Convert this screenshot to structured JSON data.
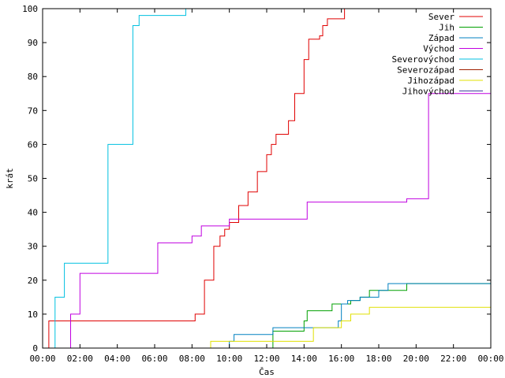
{
  "chart_data": {
    "type": "line",
    "title": "",
    "xlabel": "Čas",
    "ylabel": "krát",
    "xlim": [
      "00:00",
      "24:00"
    ],
    "ylim": [
      0,
      100
    ],
    "x_tick_labels": [
      "00:00",
      "02:00",
      "04:00",
      "06:00",
      "08:00",
      "10:00",
      "12:00",
      "14:00",
      "16:00",
      "18:00",
      "20:00",
      "22:00",
      "00:00"
    ],
    "y_ticks": [
      0,
      10,
      20,
      30,
      40,
      50,
      60,
      70,
      80,
      90,
      100
    ],
    "grid": false,
    "legend_position": "top-right",
    "series": [
      {
        "name": "Sever",
        "color": "#e00000",
        "step": true,
        "x": [
          "00:00",
          "00:20",
          "07:40",
          "08:10",
          "08:40",
          "09:10",
          "09:30",
          "09:45",
          "10:00",
          "10:30",
          "11:00",
          "11:30",
          "12:00",
          "12:15",
          "12:30",
          "12:45",
          "13:00",
          "13:10",
          "13:30",
          "14:00",
          "14:15",
          "14:30",
          "14:50",
          "15:00",
          "15:15",
          "15:30",
          "15:45",
          "16:00",
          "16:10",
          "24:00"
        ],
        "y": [
          0,
          8,
          8,
          10,
          20,
          30,
          33,
          35,
          37,
          42,
          46,
          52,
          57,
          60,
          63,
          63,
          63,
          67,
          75,
          85,
          91,
          91,
          92,
          95,
          97,
          97,
          97,
          97,
          100,
          100
        ]
      },
      {
        "name": "Jih",
        "color": "#00a000",
        "step": true,
        "x": [
          "00:00",
          "12:10",
          "12:20",
          "13:00",
          "14:00",
          "14:10",
          "15:30",
          "16:00",
          "16:30",
          "17:00",
          "17:30",
          "18:00",
          "18:30",
          "19:30",
          "24:00"
        ],
        "y": [
          0,
          0,
          5,
          5,
          8,
          11,
          13,
          13,
          14,
          15,
          17,
          17,
          17,
          19,
          19
        ]
      },
      {
        "name": "Západ",
        "color": "#0080c0",
        "step": true,
        "x": [
          "00:00",
          "08:40",
          "10:00",
          "10:15",
          "12:00",
          "12:20",
          "14:00",
          "15:00",
          "15:50",
          "16:00",
          "16:20",
          "17:00",
          "17:30",
          "18:00",
          "18:30",
          "24:00"
        ],
        "y": [
          0,
          0,
          2,
          4,
          4,
          6,
          6,
          6,
          8,
          13,
          14,
          15,
          15,
          17,
          19,
          19
        ]
      },
      {
        "name": "Východ",
        "color": "#c000e0",
        "step": true,
        "x": [
          "00:00",
          "01:10",
          "01:30",
          "02:00",
          "06:00",
          "06:10",
          "07:40",
          "08:00",
          "08:30",
          "09:20",
          "10:00",
          "14:00",
          "14:10",
          "17:30",
          "19:30",
          "20:00",
          "20:40",
          "24:00"
        ],
        "y": [
          0,
          0,
          10,
          22,
          22,
          31,
          31,
          33,
          36,
          36,
          38,
          38,
          43,
          43,
          44,
          44,
          75,
          75
        ]
      },
      {
        "name": "Severovýchod",
        "color": "#00c0e0",
        "step": true,
        "x": [
          "00:00",
          "00:20",
          "00:40",
          "01:10",
          "02:10",
          "03:30",
          "04:50",
          "05:10",
          "07:40",
          "24:00"
        ],
        "y": [
          0,
          0,
          15,
          25,
          25,
          60,
          95,
          98,
          100,
          100
        ]
      },
      {
        "name": "Severozápad",
        "color": "#a02000",
        "step": true,
        "x": [
          "00:00",
          "24:00"
        ],
        "y": [
          0,
          0
        ]
      },
      {
        "name": "Jihozápad",
        "color": "#e0e000",
        "step": true,
        "x": [
          "00:00",
          "07:50",
          "09:00",
          "12:00",
          "12:50",
          "14:30",
          "15:00",
          "16:00",
          "16:30",
          "17:30",
          "24:00"
        ],
        "y": [
          0,
          0,
          2,
          2,
          2,
          6,
          6,
          8,
          10,
          12,
          12
        ]
      },
      {
        "name": "Jihovýchod",
        "color": "#4040a0",
        "step": true,
        "x": [
          "00:00",
          "24:00"
        ],
        "y": [
          0,
          0
        ]
      }
    ]
  }
}
